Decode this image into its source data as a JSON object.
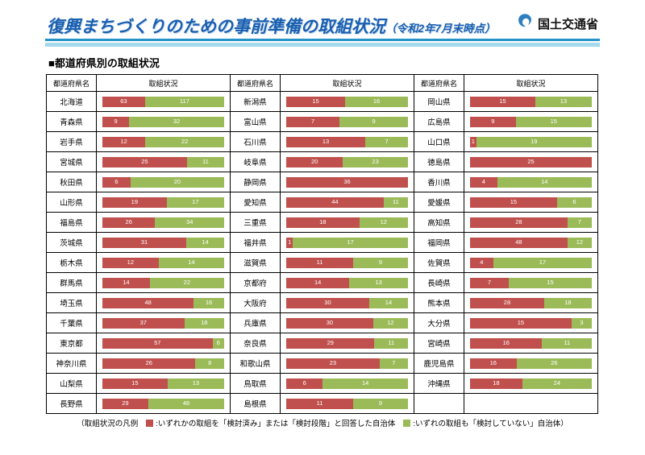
{
  "header": {
    "title": "復興まちづくりのための事前準備の取組状況",
    "title_suffix": "（令和2年7月末時点）",
    "agency": "国土交通省",
    "logo_icon": "mlit-swirl"
  },
  "section": {
    "heading": "■都道府県別の取組状況"
  },
  "table": {
    "col_headers": {
      "prefecture": "都道府県名",
      "status": "取組状況"
    }
  },
  "legend": {
    "prefix": "（取組状況の凡例",
    "red_label": ":いずれかの取組を「検討済み」または「検討段階」と回答した自治体",
    "green_label": ":いずれの取組も「検討していない」自治体）"
  },
  "colors": {
    "red": "#c0504d",
    "green": "#9bbb59",
    "title_blue": "#1a5fb0",
    "rule_dark": "#2593c8",
    "rule_light": "#a5d9ec"
  },
  "chart_data": {
    "type": "bar",
    "orientation": "horizontal-stacked",
    "title": "都道府県別の取組状況",
    "note": "各バーは自治体数の内訳（赤＋緑）を全幅で正規化した帯グラフ",
    "layout": {
      "columns": 3,
      "rows_per_column": 16,
      "legend_position": "bottom",
      "grid": false
    },
    "categories": [
      "北海道",
      "青森県",
      "岩手県",
      "宮城県",
      "秋田県",
      "山形県",
      "福島県",
      "茨城県",
      "栃木県",
      "群馬県",
      "埼玉県",
      "千葉県",
      "東京都",
      "神奈川県",
      "山梨県",
      "長野県",
      "新潟県",
      "富山県",
      "石川県",
      "岐阜県",
      "静岡県",
      "愛知県",
      "三重県",
      "福井県",
      "滋賀県",
      "京都府",
      "大阪府",
      "兵庫県",
      "奈良県",
      "和歌山県",
      "鳥取県",
      "島根県",
      "岡山県",
      "広島県",
      "山口県",
      "徳島県",
      "香川県",
      "愛媛県",
      "高知県",
      "福岡県",
      "佐賀県",
      "長崎県",
      "熊本県",
      "大分県",
      "宮崎県",
      "鹿児島県",
      "沖縄県"
    ],
    "series": [
      {
        "name": "いずれかの取組を「検討済み」または「検討段階」と回答した自治体",
        "color": "#c0504d",
        "values": [
          63,
          9,
          12,
          25,
          6,
          19,
          26,
          31,
          12,
          14,
          48,
          37,
          57,
          26,
          15,
          29,
          15,
          7,
          13,
          20,
          36,
          44,
          18,
          1,
          11,
          14,
          30,
          30,
          29,
          23,
          6,
          11,
          15,
          9,
          1,
          25,
          4,
          15,
          28,
          48,
          4,
          7,
          28,
          15,
          16,
          16,
          18
        ]
      },
      {
        "name": "いずれの取組も「検討していない」自治体",
        "color": "#9bbb59",
        "values": [
          117,
          32,
          22,
          11,
          20,
          17,
          34,
          14,
          14,
          22,
          16,
          18,
          6,
          8,
          13,
          48,
          16,
          9,
          7,
          23,
          0,
          11,
          12,
          17,
          9,
          13,
          14,
          12,
          11,
          7,
          14,
          9,
          13,
          15,
          19,
          0,
          14,
          6,
          7,
          12,
          17,
          15,
          18,
          3,
          11,
          26,
          24
        ]
      }
    ]
  }
}
